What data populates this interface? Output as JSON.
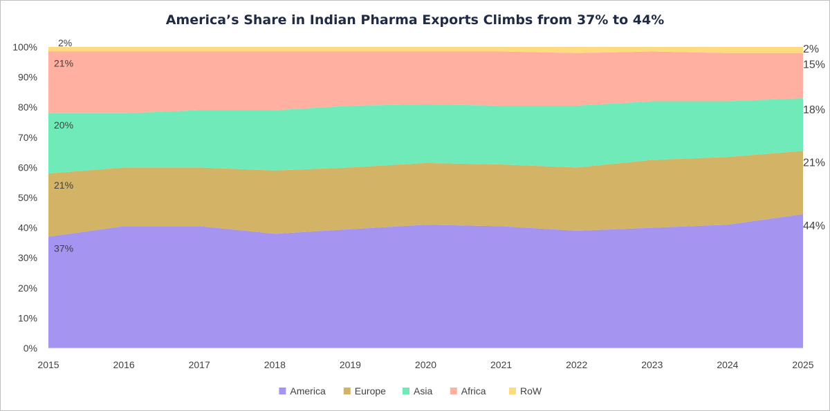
{
  "chart_data": {
    "type": "area",
    "stacked": true,
    "percent": true,
    "title": "America’s Share in Indian Pharma Exports Climbs from 37% to 44%",
    "xlabel": "",
    "ylabel": "",
    "ylim": [
      0,
      100
    ],
    "x": [
      "2015",
      "2016",
      "2017",
      "2018",
      "2019",
      "2020",
      "2021",
      "2022",
      "2023",
      "2024",
      "2025"
    ],
    "y_ticks": [
      "0%",
      "10%",
      "20%",
      "30%",
      "40%",
      "50%",
      "60%",
      "70%",
      "80%",
      "90%",
      "100%"
    ],
    "grid": false,
    "legend_position": "bottom",
    "series": [
      {
        "name": "America",
        "color": "#a594f0",
        "values": [
          37,
          40.5,
          40.5,
          38,
          39.5,
          41,
          40.5,
          39,
          40,
          41,
          44.5
        ]
      },
      {
        "name": "Europe",
        "color": "#d3b466",
        "values": [
          21,
          19.5,
          19.5,
          21,
          20.5,
          20.5,
          20.5,
          21,
          22.5,
          22.5,
          21
        ]
      },
      {
        "name": "Asia",
        "color": "#70eab9",
        "values": [
          20,
          18,
          19,
          20,
          20.5,
          19.5,
          19.5,
          20.5,
          19.5,
          18.5,
          17.5
        ]
      },
      {
        "name": "Africa",
        "color": "#ffb0a0",
        "values": [
          20.5,
          20.5,
          19.5,
          19.5,
          18,
          17.5,
          18,
          17.5,
          16.5,
          16,
          15
        ]
      },
      {
        "name": "RoW",
        "color": "#ffdb7f",
        "values": [
          1.5,
          1.5,
          1.5,
          1.5,
          1.5,
          1.5,
          1.5,
          2,
          1.5,
          2,
          2
        ]
      }
    ],
    "start_labels": [
      "37%",
      "21%",
      "20%",
      "21%",
      "2%"
    ],
    "end_labels": [
      "44%",
      "21%",
      "18%",
      "15%",
      "2%"
    ]
  }
}
